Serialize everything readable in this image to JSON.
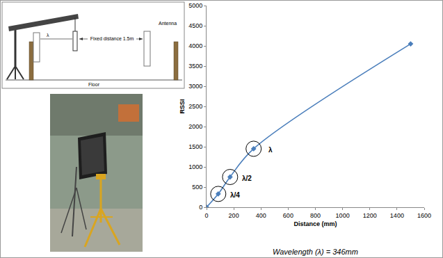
{
  "chart_data": {
    "type": "line",
    "x_label": "Distance (mm)",
    "y_label": "RSSI",
    "x": [
      0,
      86,
      173,
      346,
      1500
    ],
    "values": [
      0,
      330,
      750,
      1450,
      4050
    ],
    "color": "#4a7ebb",
    "marker": "diamond",
    "line_style": "spline",
    "xlim": [
      0,
      1600
    ],
    "xticks": [
      0,
      200,
      400,
      600,
      800,
      1000,
      1200,
      1400,
      1600
    ],
    "ylim": [
      0,
      5000
    ],
    "yticks": [
      0,
      500,
      1000,
      1500,
      2000,
      2500,
      3000,
      3500,
      4000,
      4500,
      5000
    ],
    "grid": false,
    "marked_points": [
      {
        "x": 86,
        "y": 330,
        "label": "λ/4"
      },
      {
        "x": 173,
        "y": 750,
        "label": "λ/2"
      },
      {
        "x": 346,
        "y": 1450,
        "label": "λ"
      }
    ],
    "caption": "Wavelength (λ) = 346mm"
  },
  "diagram": {
    "lambda": "λ",
    "distance": "Fixed distance 1.5m",
    "antenna": "Antenna",
    "floor": "Floor"
  }
}
